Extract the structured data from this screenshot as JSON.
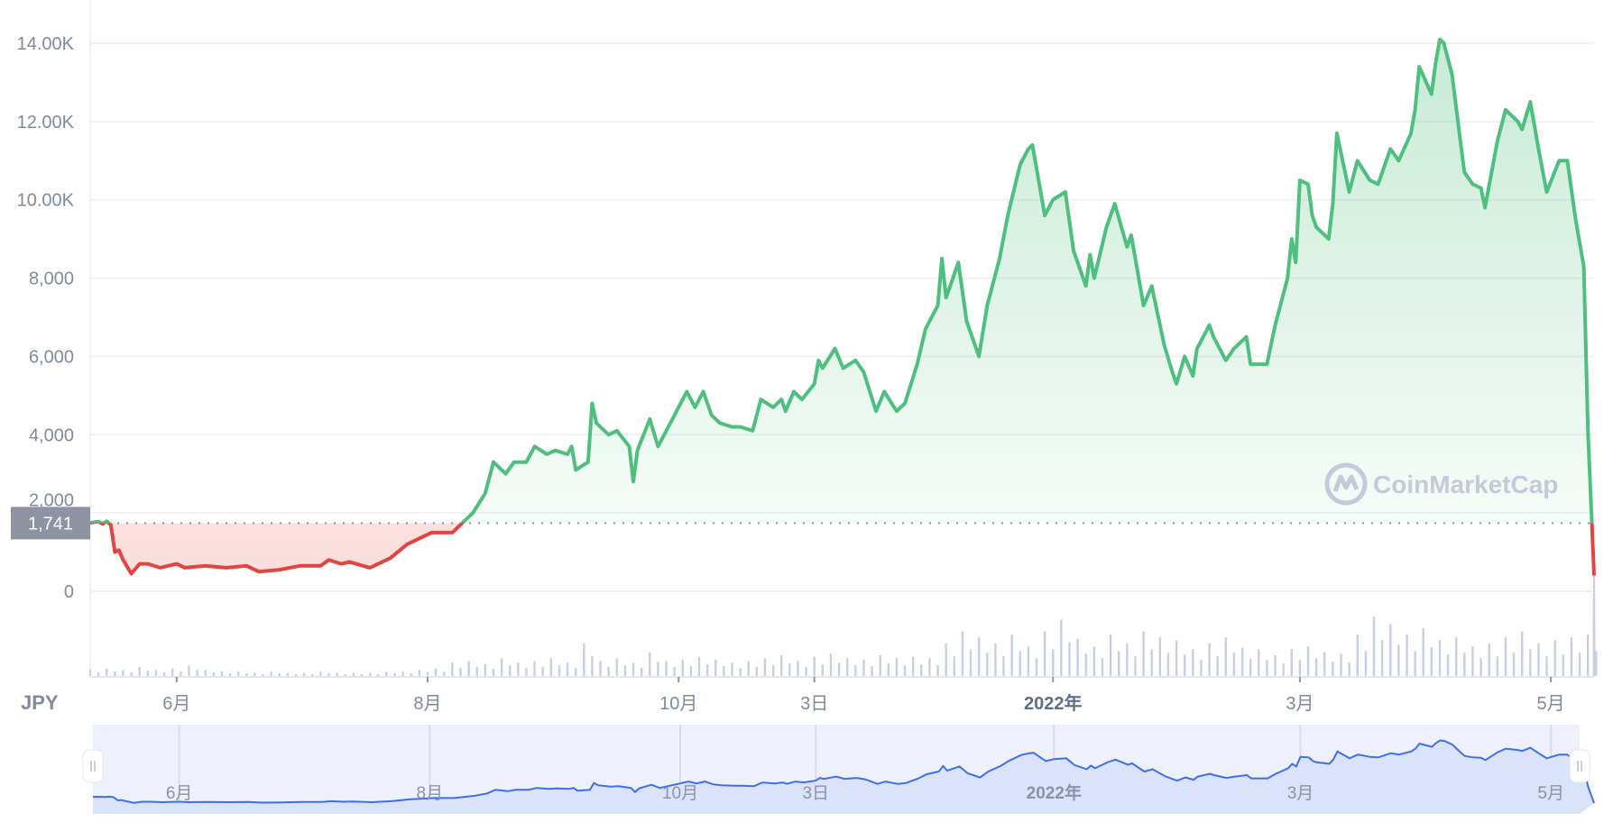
{
  "chart_data": {
    "type": "area",
    "title": "",
    "currency": "JPY",
    "ylim": [
      0,
      14000
    ],
    "y_ticks": [
      {
        "value": 0,
        "label": "0"
      },
      {
        "value": 2000,
        "label": "2,000"
      },
      {
        "value": 4000,
        "label": "4,000"
      },
      {
        "value": 6000,
        "label": "6,000"
      },
      {
        "value": 8000,
        "label": "8,000"
      },
      {
        "value": 10000,
        "label": "10.00K"
      },
      {
        "value": 12000,
        "label": "12.00K"
      },
      {
        "value": 14000,
        "label": "14.00K"
      }
    ],
    "x_range_days": [
      0,
      365.5
    ],
    "x_ticks": [
      {
        "day": 21,
        "label": "6月",
        "bold": false
      },
      {
        "day": 82,
        "label": "8月",
        "bold": false
      },
      {
        "day": 143,
        "label": "10月",
        "bold": false
      },
      {
        "day": 176,
        "label": "3日",
        "bold": false
      },
      {
        "day": 234,
        "label": "2022年",
        "bold": true
      },
      {
        "day": 294,
        "label": "3月",
        "bold": false
      },
      {
        "day": 355,
        "label": "5月",
        "bold": false
      }
    ],
    "reference": {
      "value": 1741,
      "label": "1,741"
    },
    "colors": {
      "up": "#4fbf7f",
      "down": "#e0453f",
      "volume": "#c8cfe0",
      "navigator_line": "#3f6fe8",
      "navigator_bg": "#eef1fd",
      "navigator_fill": "#dbe2fb"
    },
    "series": [
      {
        "name": "price",
        "points": [
          [
            0,
            1750
          ],
          [
            2,
            1780
          ],
          [
            3,
            1720
          ],
          [
            4,
            1790
          ],
          [
            5,
            1700
          ],
          [
            6,
            1000
          ],
          [
            7,
            1050
          ],
          [
            8,
            800
          ],
          [
            10,
            450
          ],
          [
            12,
            700
          ],
          [
            14,
            700
          ],
          [
            17,
            600
          ],
          [
            21,
            700
          ],
          [
            23,
            600
          ],
          [
            28,
            650
          ],
          [
            33,
            600
          ],
          [
            38,
            650
          ],
          [
            41,
            500
          ],
          [
            46,
            550
          ],
          [
            51,
            650
          ],
          [
            56,
            650
          ],
          [
            58,
            800
          ],
          [
            61,
            700
          ],
          [
            63,
            750
          ],
          [
            68,
            600
          ],
          [
            73,
            850
          ],
          [
            77,
            1200
          ],
          [
            81,
            1400
          ],
          [
            83,
            1500
          ],
          [
            88,
            1500
          ],
          [
            91,
            1800
          ],
          [
            93,
            2000
          ],
          [
            96,
            2500
          ],
          [
            98,
            3300
          ],
          [
            101,
            3000
          ],
          [
            103,
            3300
          ],
          [
            106,
            3300
          ],
          [
            108,
            3700
          ],
          [
            111,
            3500
          ],
          [
            113,
            3600
          ],
          [
            116,
            3500
          ],
          [
            117,
            3700
          ],
          [
            118,
            3100
          ],
          [
            121,
            3300
          ],
          [
            122,
            4800
          ],
          [
            123,
            4300
          ],
          [
            126,
            4000
          ],
          [
            128,
            4100
          ],
          [
            131,
            3700
          ],
          [
            132,
            2800
          ],
          [
            133,
            3600
          ],
          [
            136,
            4400
          ],
          [
            138,
            3700
          ],
          [
            141,
            4300
          ],
          [
            143,
            4700
          ],
          [
            145,
            5100
          ],
          [
            147,
            4700
          ],
          [
            149,
            5100
          ],
          [
            151,
            4500
          ],
          [
            153,
            4300
          ],
          [
            156,
            4200
          ],
          [
            158,
            4200
          ],
          [
            161,
            4100
          ],
          [
            163,
            4900
          ],
          [
            166,
            4700
          ],
          [
            168,
            4900
          ],
          [
            169,
            4600
          ],
          [
            171,
            5100
          ],
          [
            173,
            4900
          ],
          [
            176,
            5300
          ],
          [
            177,
            5900
          ],
          [
            178,
            5700
          ],
          [
            181,
            6200
          ],
          [
            183,
            5700
          ],
          [
            186,
            5900
          ],
          [
            188,
            5600
          ],
          [
            191,
            4600
          ],
          [
            193,
            5100
          ],
          [
            196,
            4600
          ],
          [
            198,
            4800
          ],
          [
            201,
            5800
          ],
          [
            203,
            6700
          ],
          [
            206,
            7300
          ],
          [
            207,
            8500
          ],
          [
            208,
            7500
          ],
          [
            211,
            8400
          ],
          [
            213,
            6900
          ],
          [
            216,
            6000
          ],
          [
            218,
            7300
          ],
          [
            221,
            8500
          ],
          [
            223,
            9600
          ],
          [
            226,
            10900
          ],
          [
            228,
            11300
          ],
          [
            229,
            11400
          ],
          [
            231,
            10200
          ],
          [
            232,
            9600
          ],
          [
            234,
            10000
          ],
          [
            237,
            10200
          ],
          [
            239,
            8700
          ],
          [
            242,
            7800
          ],
          [
            243,
            8600
          ],
          [
            244,
            8000
          ],
          [
            247,
            9300
          ],
          [
            249,
            9900
          ],
          [
            252,
            8800
          ],
          [
            253,
            9100
          ],
          [
            256,
            7300
          ],
          [
            258,
            7800
          ],
          [
            261,
            6300
          ],
          [
            263,
            5600
          ],
          [
            264,
            5300
          ],
          [
            266,
            6000
          ],
          [
            268,
            5500
          ],
          [
            269,
            6200
          ],
          [
            272,
            6800
          ],
          [
            273,
            6500
          ],
          [
            276,
            5900
          ],
          [
            278,
            6200
          ],
          [
            281,
            6500
          ],
          [
            282,
            5800
          ],
          [
            286,
            5800
          ],
          [
            288,
            6800
          ],
          [
            291,
            8000
          ],
          [
            292,
            9000
          ],
          [
            293,
            8400
          ],
          [
            294,
            10500
          ],
          [
            296,
            10400
          ],
          [
            297,
            9600
          ],
          [
            298,
            9300
          ],
          [
            301,
            9000
          ],
          [
            302,
            9900
          ],
          [
            303,
            11700
          ],
          [
            306,
            10200
          ],
          [
            308,
            11000
          ],
          [
            311,
            10500
          ],
          [
            313,
            10400
          ],
          [
            316,
            11300
          ],
          [
            318,
            11000
          ],
          [
            321,
            11700
          ],
          [
            322,
            12300
          ],
          [
            323,
            13400
          ],
          [
            326,
            12700
          ],
          [
            327,
            13500
          ],
          [
            328,
            14100
          ],
          [
            329,
            14000
          ],
          [
            331,
            13200
          ],
          [
            333,
            11500
          ],
          [
            334,
            10700
          ],
          [
            336,
            10400
          ],
          [
            338,
            10300
          ],
          [
            339,
            9800
          ],
          [
            342,
            11500
          ],
          [
            344,
            12300
          ],
          [
            347,
            12000
          ],
          [
            348,
            11800
          ],
          [
            350,
            12500
          ],
          [
            352,
            11300
          ],
          [
            354,
            10200
          ],
          [
            357,
            11000
          ],
          [
            359,
            11000
          ],
          [
            361,
            9500
          ],
          [
            363,
            8300
          ],
          [
            364,
            4100
          ],
          [
            365.5,
            400
          ]
        ]
      },
      {
        "name": "volume",
        "step_days": 4,
        "values": [
          4,
          5,
          4,
          6,
          4,
          5,
          7,
          4,
          3,
          3,
          2,
          3,
          2,
          2,
          3,
          2,
          2,
          2,
          3,
          3,
          4,
          5,
          9,
          10,
          8,
          12,
          9,
          10,
          12,
          9,
          22,
          10,
          12,
          9,
          16,
          10,
          11,
          13,
          11,
          9,
          10,
          12,
          14,
          10,
          13,
          15,
          12,
          11,
          14,
          12,
          13,
          12,
          22,
          30,
          26,
          22,
          28,
          20,
          30,
          38,
          25,
          20,
          28,
          22,
          30,
          26,
          24,
          18,
          22,
          26,
          19,
          18,
          14,
          18,
          20,
          16,
          15,
          28,
          40,
          35,
          28,
          32,
          24,
          26,
          20,
          22,
          26,
          30,
          22,
          24,
          26,
          28,
          35,
          50,
          85
        ]
      }
    ]
  },
  "navigator": {
    "x_ticks": [
      {
        "day": 21,
        "label": "6月",
        "bold": false
      },
      {
        "day": 82,
        "label": "8月",
        "bold": false
      },
      {
        "day": 143,
        "label": "10月",
        "bold": false
      },
      {
        "day": 176,
        "label": "3日",
        "bold": false
      },
      {
        "day": 234,
        "label": "2022年",
        "bold": true
      },
      {
        "day": 294,
        "label": "3月",
        "bold": false
      },
      {
        "day": 355,
        "label": "5月",
        "bold": false
      }
    ]
  },
  "watermark": "CoinMarketCap"
}
